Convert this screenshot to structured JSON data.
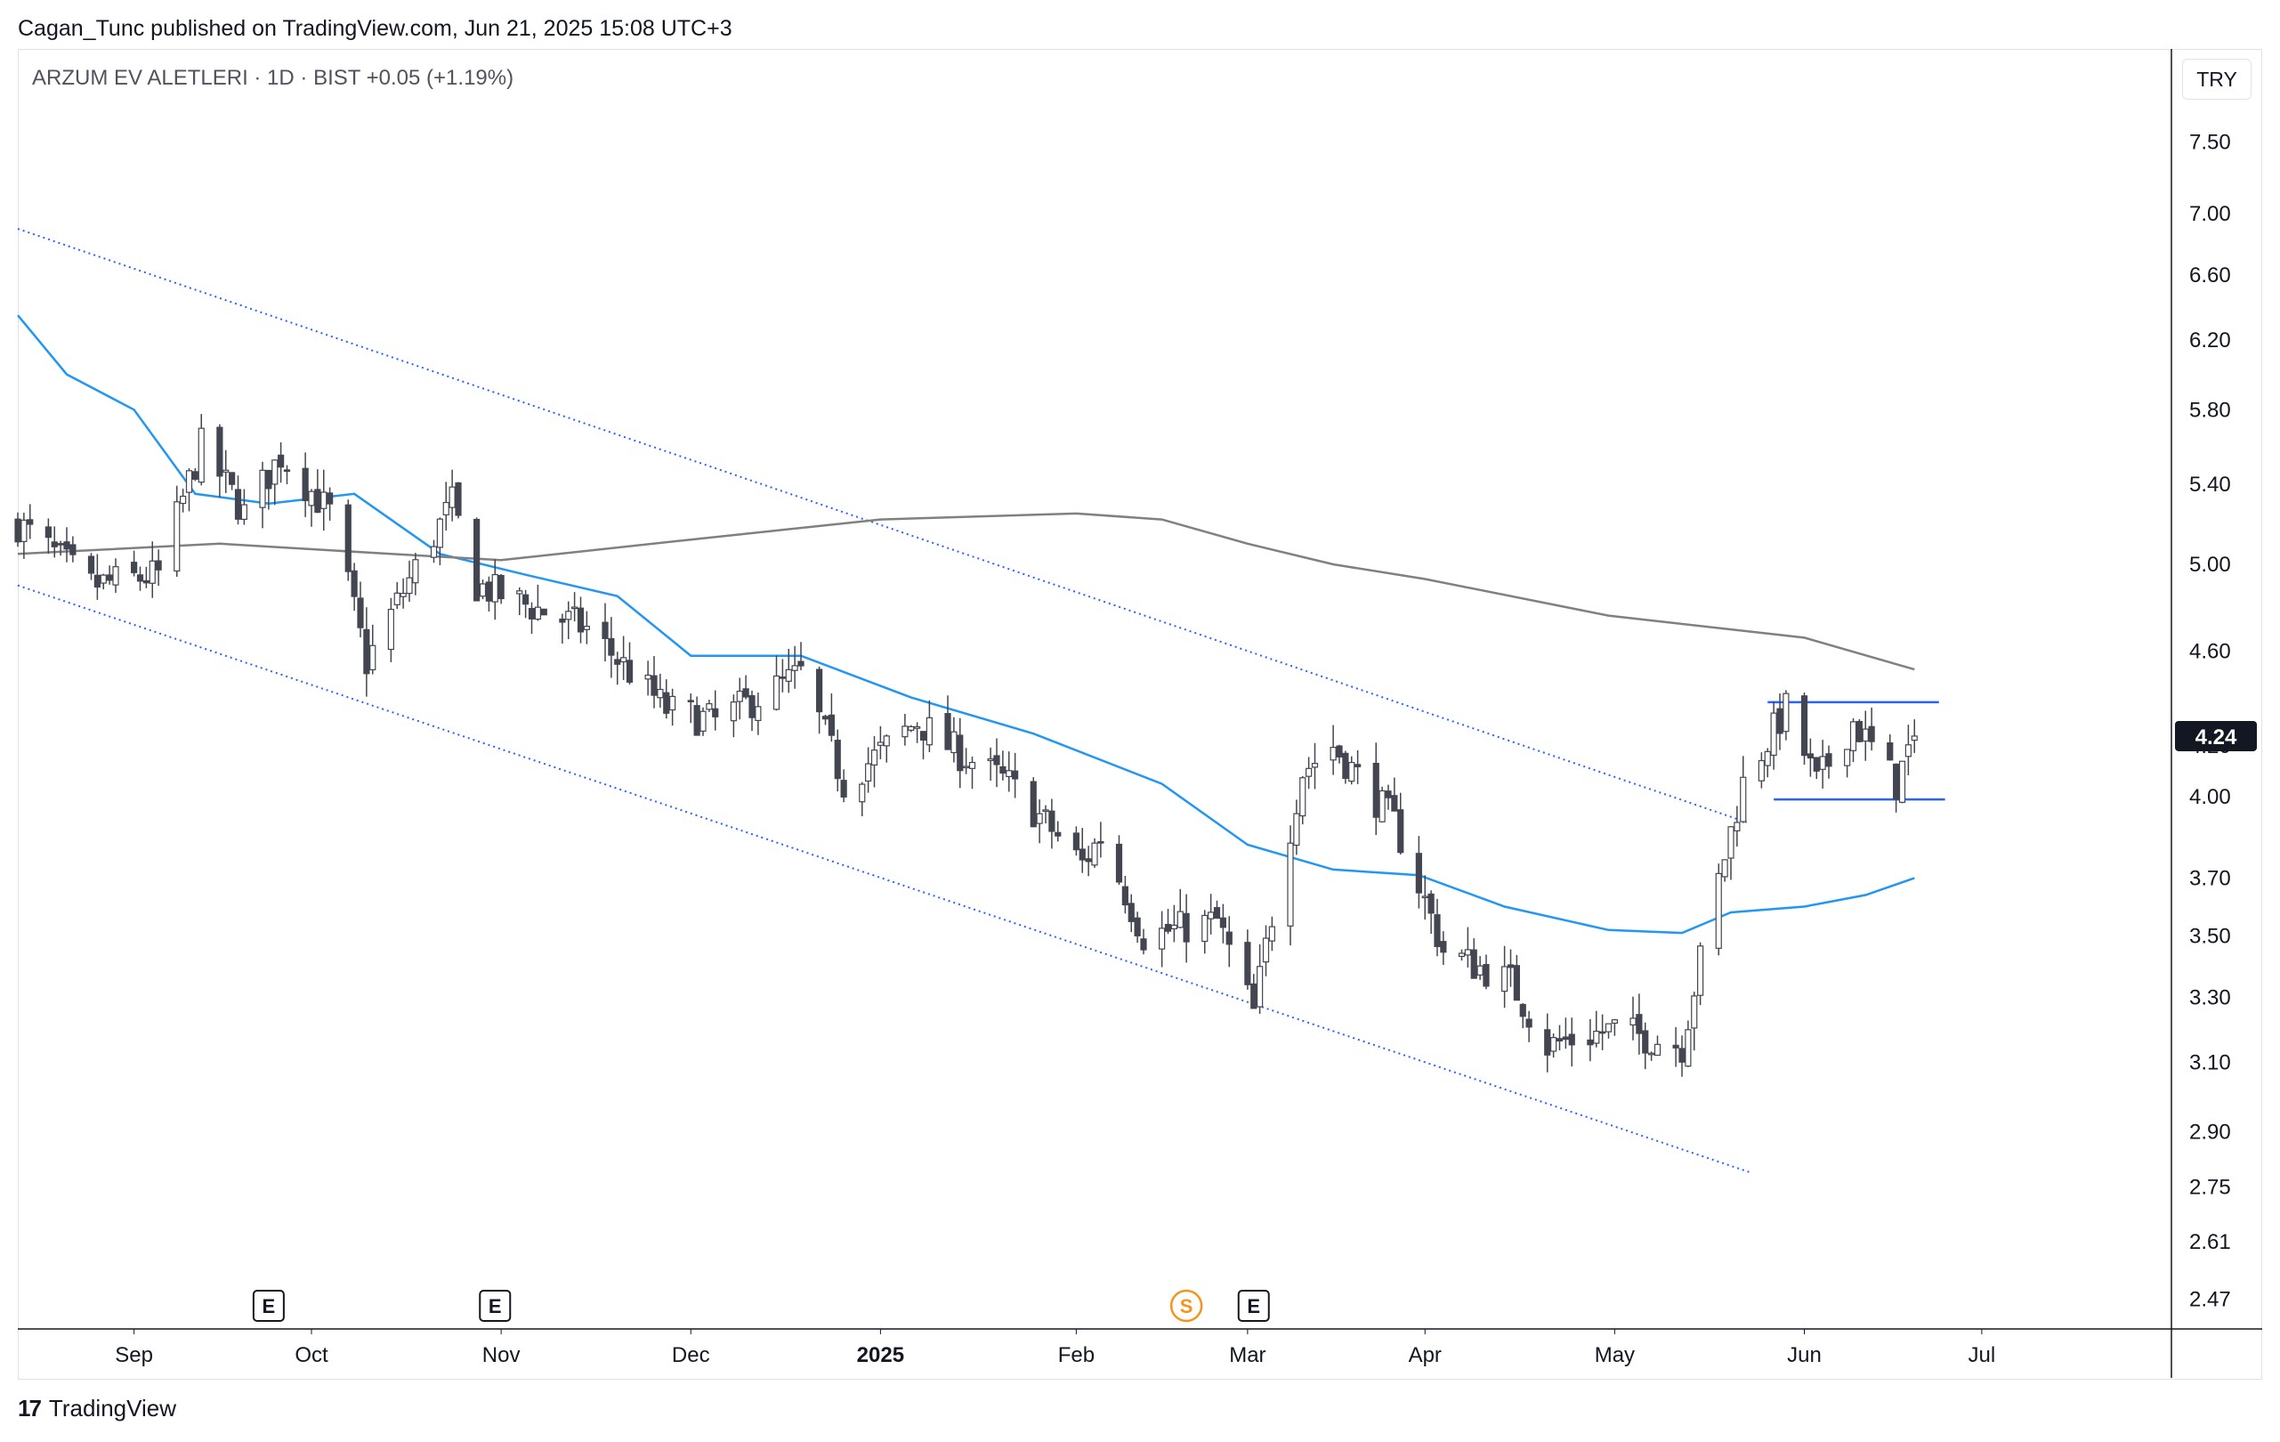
{
  "publisher_line": "Cagan_Tunc published on TradingView.com, Jun 21, 2025 15:08 UTC+3",
  "symbol": {
    "name": "ARZUM EV ALETLERI",
    "interval": "1D",
    "exchange": "BIST",
    "change": "+0.05 (+1.19%)",
    "title": "ARZUM EV ALETLERI · 1D · BIST  +0.05 (+1.19%)"
  },
  "currency": "TRY",
  "brand": {
    "logo": "17",
    "name": "TradingView"
  },
  "colors": {
    "candle_up_fill": "#ffffff",
    "candle_down_fill": "#434651",
    "candle_outline": "#434651",
    "ma_fast": "#2196f3",
    "ma_slow": "#808080",
    "channel": "#2962ff",
    "range_lines": "#2962ff",
    "price_label_bg": "#131722",
    "dividend_badge": "#f7931a"
  },
  "chart_data": {
    "type": "candlestick",
    "y_scale": "log",
    "ylim": [
      2.4,
      8.2
    ],
    "y_ticks": [
      "7.50",
      "7.00",
      "6.60",
      "6.20",
      "5.80",
      "5.40",
      "5.00",
      "4.60",
      "4.20",
      "4.00",
      "3.70",
      "3.50",
      "3.30",
      "3.10",
      "2.90",
      "2.75",
      "2.61",
      "2.47"
    ],
    "x_range": [
      "2024-08-14",
      "2025-08-01"
    ],
    "x_ticks": [
      {
        "label": "Sep",
        "date": "2024-09-02"
      },
      {
        "label": "Oct",
        "date": "2024-10-01"
      },
      {
        "label": "Nov",
        "date": "2024-11-01"
      },
      {
        "label": "Dec",
        "date": "2024-12-02"
      },
      {
        "label": "2025",
        "date": "2025-01-02",
        "bold": true
      },
      {
        "label": "Feb",
        "date": "2025-02-03"
      },
      {
        "label": "Mar",
        "date": "2025-03-03"
      },
      {
        "label": "Apr",
        "date": "2025-04-01"
      },
      {
        "label": "May",
        "date": "2025-05-02"
      },
      {
        "label": "Jun",
        "date": "2025-06-02"
      },
      {
        "label": "Jul",
        "date": "2025-07-01"
      }
    ],
    "last_price": "4.24",
    "last_price_value": 4.24,
    "series": [
      {
        "type": "candles",
        "ohlc_path": [
          [
            "2024-08-14",
            5.2
          ],
          [
            "2024-08-26",
            4.9
          ],
          [
            "2024-09-06",
            4.95
          ],
          [
            "2024-09-13",
            5.6
          ],
          [
            "2024-09-20",
            5.25
          ],
          [
            "2024-09-26",
            5.55
          ],
          [
            "2024-10-04",
            5.25
          ],
          [
            "2024-10-10",
            4.55
          ],
          [
            "2024-10-24",
            5.3
          ],
          [
            "2024-10-28",
            4.9
          ],
          [
            "2024-11-15",
            4.7
          ],
          [
            "2024-11-28",
            4.35
          ],
          [
            "2024-12-06",
            4.3
          ],
          [
            "2024-12-20",
            4.5
          ],
          [
            "2024-12-27",
            4.05
          ],
          [
            "2025-01-08",
            4.3
          ],
          [
            "2025-01-13",
            4.2
          ],
          [
            "2025-01-23",
            4.05
          ],
          [
            "2025-02-04",
            3.75
          ],
          [
            "2025-02-07",
            3.85
          ],
          [
            "2025-02-14",
            3.5
          ],
          [
            "2025-02-26",
            3.55
          ],
          [
            "2025-03-04",
            3.25
          ],
          [
            "2025-03-12",
            4.1
          ],
          [
            "2025-03-17",
            4.2
          ],
          [
            "2025-03-27",
            3.9
          ],
          [
            "2025-04-04",
            3.45
          ],
          [
            "2025-04-15",
            3.35
          ],
          [
            "2025-04-21",
            3.15
          ],
          [
            "2025-05-02",
            3.2
          ],
          [
            "2025-05-13",
            3.15
          ],
          [
            "2025-05-23",
            4.05
          ],
          [
            "2025-05-30",
            4.35
          ],
          [
            "2025-06-04",
            4.05
          ],
          [
            "2025-06-10",
            4.3
          ],
          [
            "2025-06-17",
            4.05
          ],
          [
            "2025-06-20",
            4.24
          ]
        ]
      },
      {
        "type": "line",
        "role": "fast moving average",
        "points": [
          [
            "2024-08-14",
            6.35
          ],
          [
            "2024-08-22",
            6.0
          ],
          [
            "2024-09-02",
            5.8
          ],
          [
            "2024-09-12",
            5.35
          ],
          [
            "2024-09-24",
            5.3
          ],
          [
            "2024-10-08",
            5.35
          ],
          [
            "2024-10-22",
            5.05
          ],
          [
            "2024-11-05",
            4.95
          ],
          [
            "2024-11-20",
            4.85
          ],
          [
            "2024-12-02",
            4.58
          ],
          [
            "2024-12-20",
            4.58
          ],
          [
            "2025-01-07",
            4.4
          ],
          [
            "2025-01-27",
            4.25
          ],
          [
            "2025-02-17",
            4.05
          ],
          [
            "2025-03-03",
            3.82
          ],
          [
            "2025-03-17",
            3.73
          ],
          [
            "2025-03-31",
            3.71
          ],
          [
            "2025-04-14",
            3.6
          ],
          [
            "2025-05-01",
            3.52
          ],
          [
            "2025-05-13",
            3.51
          ],
          [
            "2025-05-21",
            3.58
          ],
          [
            "2025-06-02",
            3.6
          ],
          [
            "2025-06-12",
            3.64
          ],
          [
            "2025-06-20",
            3.7
          ]
        ]
      },
      {
        "type": "line",
        "role": "slow moving average",
        "points": [
          [
            "2024-08-14",
            5.05
          ],
          [
            "2024-09-16",
            5.1
          ],
          [
            "2024-10-14",
            5.05
          ],
          [
            "2024-11-01",
            5.02
          ],
          [
            "2024-12-02",
            5.12
          ],
          [
            "2025-01-02",
            5.22
          ],
          [
            "2025-02-03",
            5.25
          ],
          [
            "2025-02-17",
            5.22
          ],
          [
            "2025-03-03",
            5.1
          ],
          [
            "2025-03-17",
            5.0
          ],
          [
            "2025-04-01",
            4.93
          ],
          [
            "2025-05-01",
            4.76
          ],
          [
            "2025-06-02",
            4.66
          ],
          [
            "2025-06-20",
            4.52
          ]
        ]
      }
    ],
    "drawings": [
      {
        "type": "channel-line",
        "style": "dotted",
        "from": [
          "2024-08-14",
          6.9
        ],
        "to": [
          "2025-05-24",
          3.9
        ]
      },
      {
        "type": "channel-line",
        "style": "dotted",
        "from": [
          "2024-08-14",
          4.9
        ],
        "to": [
          "2025-05-24",
          2.79
        ]
      },
      {
        "type": "horizontal-segment",
        "from": [
          "2025-05-27",
          4.38
        ],
        "to": [
          "2025-06-24",
          4.38
        ]
      },
      {
        "type": "horizontal-segment",
        "from": [
          "2025-05-28",
          3.99
        ],
        "to": [
          "2025-06-25",
          3.99
        ]
      }
    ],
    "event_markers": [
      {
        "type": "earnings",
        "label": "E",
        "date": "2024-09-24"
      },
      {
        "type": "earnings",
        "label": "E",
        "date": "2024-10-31"
      },
      {
        "type": "dividend",
        "label": "S",
        "date": "2025-02-21"
      },
      {
        "type": "earnings",
        "label": "E",
        "date": "2025-03-04"
      }
    ]
  }
}
